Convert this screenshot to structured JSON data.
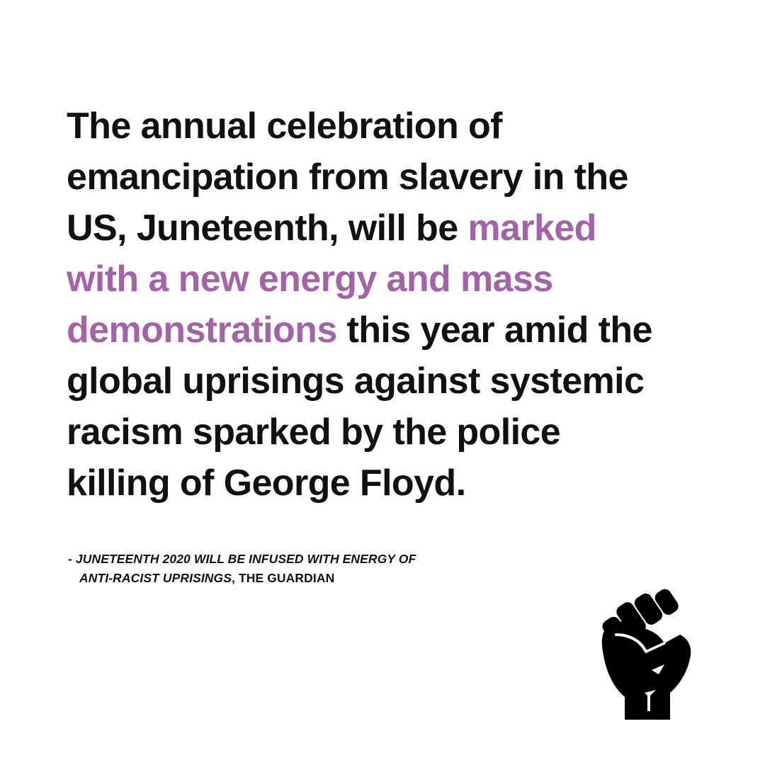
{
  "colors": {
    "text": "#111111",
    "accent": "#a463a7",
    "background": "#ffffff"
  },
  "quote": {
    "line1": "The annual celebration of",
    "line2": "emancipation from slavery in the",
    "line3_plain": "US, Juneteenth, will be ",
    "line3_highlight": "marked",
    "line4_highlight": "with a new energy and mass",
    "line5_highlight": "demonstrations",
    "line5_plain": " this year amid the",
    "line6": "global uprisings against systemic",
    "line7": "racism sparked by the police",
    "line8": "killing of George Floyd."
  },
  "citation": {
    "prefix": "- ",
    "title_line1": "JUNETEENTH 2020 WILL BE INFUSED WITH ENERGY OF",
    "title_line2": "ANTI-RACIST UPRISINGS",
    "source": ", THE GUARDIAN"
  },
  "icons": {
    "fist": "raised-fist-icon"
  }
}
